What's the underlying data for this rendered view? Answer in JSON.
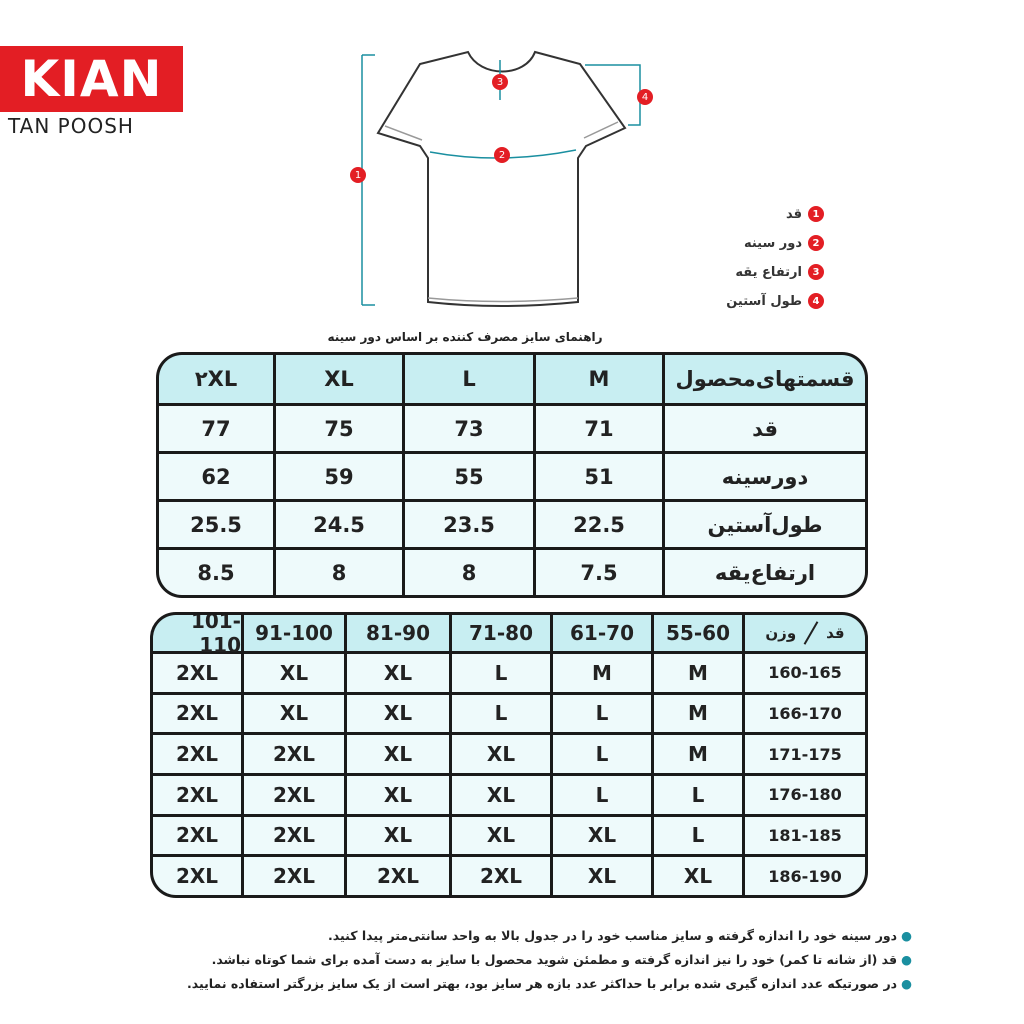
{
  "logo": {
    "brand": "KIAN",
    "sub": "TAN POOSH"
  },
  "legend": [
    {
      "number": "1",
      "label": "قد"
    },
    {
      "number": "2",
      "label": "دور سینه"
    },
    {
      "number": "3",
      "label": "ارتفاع یقه"
    },
    {
      "number": "4",
      "label": "طول آستین"
    }
  ],
  "table1": {
    "caption": "راهنمای سایز مصرف کننده بر اساس دور سینه",
    "header": [
      "قسمتهای‌محصول",
      "M",
      "L",
      "XL",
      "۲XL"
    ],
    "rows": [
      [
        "قد",
        71,
        73,
        75,
        77
      ],
      [
        "دورسینه",
        51,
        55,
        59,
        62
      ],
      [
        "طول‌آستین",
        22.5,
        23.5,
        24.5,
        25.5
      ],
      [
        "ارتفاع‌یقه",
        7.5,
        8,
        8,
        8.5
      ]
    ]
  },
  "table2": {
    "corner_height": "قد",
    "corner_weight": "وزن",
    "header": [
      "55-60",
      "61-70",
      "71-80",
      "81-90",
      "91-100",
      "101-110"
    ],
    "rows": [
      [
        "160-165",
        "M",
        "M",
        "L",
        "XL",
        "XL",
        "2XL"
      ],
      [
        "166-170",
        "M",
        "L",
        "L",
        "XL",
        "XL",
        "2XL"
      ],
      [
        "171-175",
        "M",
        "L",
        "XL",
        "XL",
        "2XL",
        "2XL"
      ],
      [
        "176-180",
        "L",
        "L",
        "XL",
        "XL",
        "2XL",
        "2XL"
      ],
      [
        "181-185",
        "L",
        "XL",
        "XL",
        "XL",
        "2XL",
        "2XL"
      ],
      [
        "186-190",
        "XL",
        "XL",
        "2XL",
        "2XL",
        "2XL",
        "2XL"
      ]
    ]
  },
  "notes": [
    "دور سینه خود را اندازه گرفته و سایز مناسب خود را در جدول بالا به واحد سانتی‌متر پیدا کنید.",
    "قد (از شانه تا کمر) خود را نیز اندازه گرفته و مطمئن شوید محصول با سایز به دست آمده برای شما کوتاه نباشد.",
    "در صورتیکه عدد اندازه گیری شده برابر با حداکثر عدد بازه هر سایز بود، بهتر است از یک سایز بزرگتر استفاده نمایید."
  ]
}
